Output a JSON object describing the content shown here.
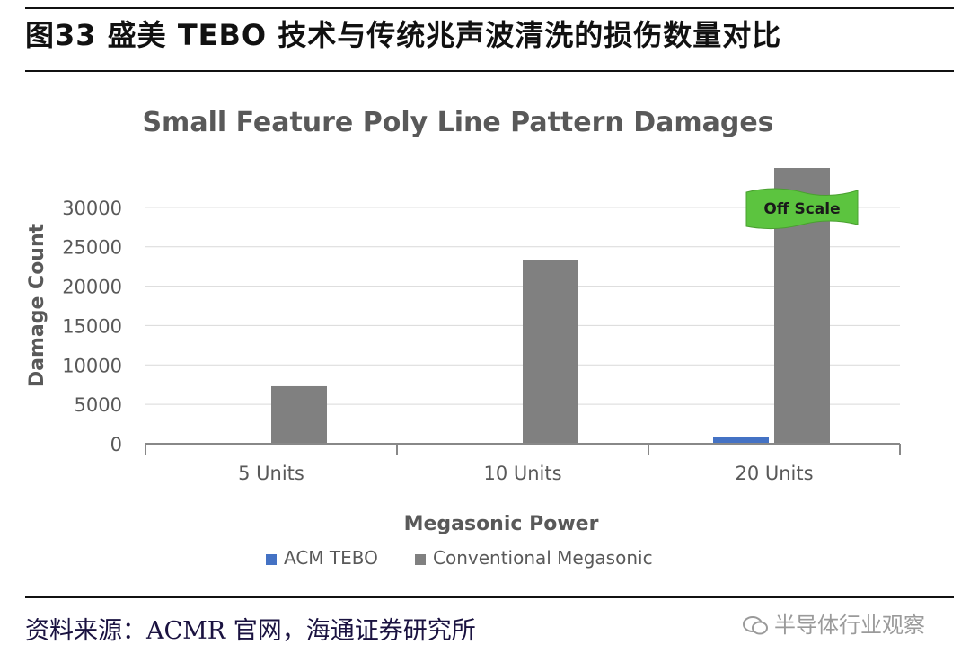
{
  "figure": {
    "title": "图33 盛美 TEBO 技术与传统兆声波清洗的损伤数量对比",
    "source": "资料来源：ACMR 官网，海通证券研究所",
    "watermark": "半导体行业观察"
  },
  "chart_data": {
    "type": "bar",
    "title": "Small Feature Poly Line Pattern Damages",
    "xlabel": "Megasonic Power",
    "ylabel": "Damage Count",
    "categories": [
      "5 Units",
      "10 Units",
      "20 Units"
    ],
    "series": [
      {
        "name": "ACM TEBO",
        "values": [
          0,
          0,
          900
        ],
        "color": "#4472c4"
      },
      {
        "name": "Conventional Megasonic",
        "values": [
          7300,
          23300,
          35000
        ],
        "color": "#808080"
      }
    ],
    "ylim": [
      0,
      35000
    ],
    "yticks": [
      0,
      5000,
      10000,
      15000,
      20000,
      25000,
      30000
    ],
    "grid": true,
    "legend": "bottom",
    "annotation": {
      "text": "Off Scale",
      "category": "20 Units",
      "series": "Conventional Megasonic",
      "color": "#5cc43f"
    }
  }
}
